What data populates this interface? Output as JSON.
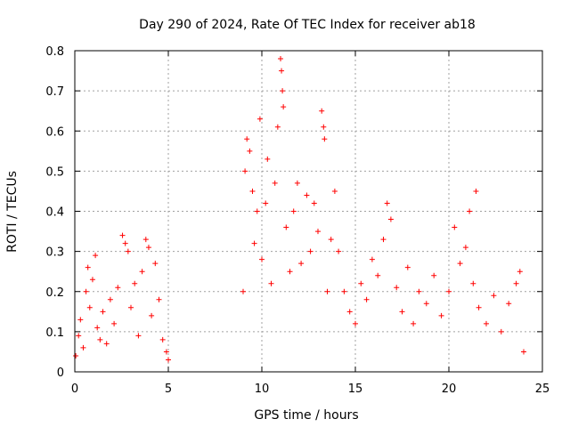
{
  "chart_data": {
    "type": "scatter",
    "title": "Day 290 of 2024, Rate Of TEC Index for receiver ab18",
    "xlabel": "GPS time / hours",
    "ylabel": "ROTI / TECUs",
    "xlim": [
      0,
      25
    ],
    "ylim": [
      0,
      0.8
    ],
    "xticks": [
      0,
      5,
      10,
      15,
      20,
      25
    ],
    "yticks": [
      0,
      0.1,
      0.2,
      0.3,
      0.4,
      0.5,
      0.6,
      0.7,
      0.8
    ],
    "xtick_labels": [
      "0",
      "5",
      "10",
      "15",
      "20",
      "25"
    ],
    "ytick_labels": [
      "0",
      "0.1",
      "0.2",
      "0.3",
      "0.4",
      "0.5",
      "0.6",
      "0.7",
      "0.8"
    ],
    "grid": true,
    "marker": "+",
    "color": "#ff0000",
    "data_gap_hours": [
      5.1,
      9.0
    ],
    "series": [
      {
        "name": "ROTI",
        "points": [
          [
            0.05,
            0.04
          ],
          [
            0.2,
            0.09
          ],
          [
            0.3,
            0.13
          ],
          [
            0.45,
            0.06
          ],
          [
            0.6,
            0.2
          ],
          [
            0.7,
            0.26
          ],
          [
            0.8,
            0.16
          ],
          [
            0.95,
            0.23
          ],
          [
            1.1,
            0.29
          ],
          [
            1.2,
            0.11
          ],
          [
            1.35,
            0.08
          ],
          [
            1.5,
            0.15
          ],
          [
            1.7,
            0.07
          ],
          [
            1.9,
            0.18
          ],
          [
            2.1,
            0.12
          ],
          [
            2.3,
            0.21
          ],
          [
            2.55,
            0.34
          ],
          [
            2.7,
            0.32
          ],
          [
            2.85,
            0.3
          ],
          [
            3.0,
            0.16
          ],
          [
            3.2,
            0.22
          ],
          [
            3.4,
            0.09
          ],
          [
            3.6,
            0.25
          ],
          [
            3.8,
            0.33
          ],
          [
            3.95,
            0.31
          ],
          [
            4.1,
            0.14
          ],
          [
            4.3,
            0.27
          ],
          [
            4.5,
            0.18
          ],
          [
            4.7,
            0.08
          ],
          [
            4.9,
            0.05
          ],
          [
            5.0,
            0.03
          ],
          [
            9.0,
            0.2
          ],
          [
            9.1,
            0.5
          ],
          [
            9.2,
            0.58
          ],
          [
            9.35,
            0.55
          ],
          [
            9.5,
            0.45
          ],
          [
            9.6,
            0.32
          ],
          [
            9.75,
            0.4
          ],
          [
            9.9,
            0.63
          ],
          [
            10.0,
            0.28
          ],
          [
            10.2,
            0.42
          ],
          [
            10.3,
            0.53
          ],
          [
            10.5,
            0.22
          ],
          [
            10.7,
            0.47
          ],
          [
            10.85,
            0.61
          ],
          [
            11.0,
            0.78
          ],
          [
            11.05,
            0.75
          ],
          [
            11.1,
            0.7
          ],
          [
            11.15,
            0.66
          ],
          [
            11.3,
            0.36
          ],
          [
            11.5,
            0.25
          ],
          [
            11.7,
            0.4
          ],
          [
            11.9,
            0.47
          ],
          [
            12.1,
            0.27
          ],
          [
            12.4,
            0.44
          ],
          [
            12.6,
            0.3
          ],
          [
            12.8,
            0.42
          ],
          [
            13.0,
            0.35
          ],
          [
            13.2,
            0.65
          ],
          [
            13.3,
            0.61
          ],
          [
            13.35,
            0.58
          ],
          [
            13.5,
            0.2
          ],
          [
            13.7,
            0.33
          ],
          [
            13.9,
            0.45
          ],
          [
            14.1,
            0.3
          ],
          [
            14.4,
            0.2
          ],
          [
            14.7,
            0.15
          ],
          [
            15.0,
            0.12
          ],
          [
            15.3,
            0.22
          ],
          [
            15.6,
            0.18
          ],
          [
            15.9,
            0.28
          ],
          [
            16.2,
            0.24
          ],
          [
            16.5,
            0.33
          ],
          [
            16.7,
            0.42
          ],
          [
            16.9,
            0.38
          ],
          [
            17.2,
            0.21
          ],
          [
            17.5,
            0.15
          ],
          [
            17.8,
            0.26
          ],
          [
            18.1,
            0.12
          ],
          [
            18.4,
            0.2
          ],
          [
            18.8,
            0.17
          ],
          [
            19.2,
            0.24
          ],
          [
            19.6,
            0.14
          ],
          [
            20.0,
            0.2
          ],
          [
            20.3,
            0.36
          ],
          [
            20.6,
            0.27
          ],
          [
            20.9,
            0.31
          ],
          [
            21.1,
            0.4
          ],
          [
            21.3,
            0.22
          ],
          [
            21.45,
            0.45
          ],
          [
            21.6,
            0.16
          ],
          [
            22.0,
            0.12
          ],
          [
            22.4,
            0.19
          ],
          [
            22.8,
            0.1
          ],
          [
            23.2,
            0.17
          ],
          [
            23.6,
            0.22
          ],
          [
            23.8,
            0.25
          ],
          [
            24.0,
            0.05
          ]
        ]
      }
    ]
  }
}
